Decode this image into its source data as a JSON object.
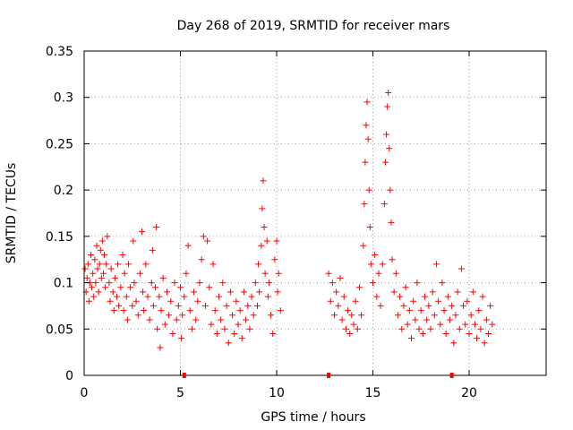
{
  "chart_data": {
    "type": "scatter",
    "title": "Day 268 of 2019, SRMTID for receiver mars",
    "xlabel": "GPS time / hours",
    "ylabel": "SRMTID / TECUs",
    "xlim": [
      0,
      24
    ],
    "ylim": [
      0,
      0.35
    ],
    "xticks": [
      0,
      5,
      10,
      15,
      20
    ],
    "xtick_labels": [
      "0",
      "5",
      "10",
      "15",
      "20"
    ],
    "yticks": [
      0,
      0.05,
      0.1,
      0.15,
      0.2,
      0.25,
      0.3,
      0.35
    ],
    "ytick_labels": [
      "0",
      "0.05",
      "0.1",
      "0.15",
      "0.2",
      "0.25",
      "0.3",
      "0.35"
    ],
    "grid": true,
    "marker": "+",
    "color": "#ff0000",
    "series": [
      {
        "name": "SRMTID",
        "points": [
          [
            0.05,
            0.115
          ],
          [
            0.1,
            0.09
          ],
          [
            0.15,
            0.105
          ],
          [
            0.2,
            0.12
          ],
          [
            0.25,
            0.08
          ],
          [
            0.3,
            0.1
          ],
          [
            0.35,
            0.13
          ],
          [
            0.4,
            0.095
          ],
          [
            0.45,
            0.11
          ],
          [
            0.5,
            0.085
          ],
          [
            0.55,
            0.125
          ],
          [
            0.6,
            0.1
          ],
          [
            0.65,
            0.14
          ],
          [
            0.7,
            0.115
          ],
          [
            0.75,
            0.09
          ],
          [
            0.8,
            0.12
          ],
          [
            0.85,
            0.135
          ],
          [
            0.9,
            0.105
          ],
          [
            0.95,
            0.145
          ],
          [
            1.0,
            0.11
          ],
          [
            1.05,
            0.13
          ],
          [
            1.1,
            0.095
          ],
          [
            1.15,
            0.12
          ],
          [
            1.2,
            0.15
          ],
          [
            1.3,
            0.1
          ],
          [
            1.35,
            0.08
          ],
          [
            1.4,
            0.115
          ],
          [
            1.5,
            0.09
          ],
          [
            1.55,
            0.07
          ],
          [
            1.6,
            0.105
          ],
          [
            1.7,
            0.085
          ],
          [
            1.75,
            0.12
          ],
          [
            1.8,
            0.075
          ],
          [
            1.9,
            0.095
          ],
          [
            2.0,
            0.13
          ],
          [
            2.05,
            0.07
          ],
          [
            2.1,
            0.11
          ],
          [
            2.2,
            0.085
          ],
          [
            2.25,
            0.06
          ],
          [
            2.3,
            0.12
          ],
          [
            2.4,
            0.095
          ],
          [
            2.5,
            0.075
          ],
          [
            2.55,
            0.145
          ],
          [
            2.6,
            0.1
          ],
          [
            2.7,
            0.08
          ],
          [
            2.8,
            0.065
          ],
          [
            2.9,
            0.11
          ],
          [
            3.0,
            0.155
          ],
          [
            3.05,
            0.09
          ],
          [
            3.1,
            0.07
          ],
          [
            3.2,
            0.12
          ],
          [
            3.3,
            0.085
          ],
          [
            3.4,
            0.06
          ],
          [
            3.5,
            0.1
          ],
          [
            3.55,
            0.135
          ],
          [
            3.6,
            0.075
          ],
          [
            3.7,
            0.095
          ],
          [
            3.75,
            0.16
          ],
          [
            3.8,
            0.05
          ],
          [
            3.9,
            0.085
          ],
          [
            3.95,
            0.03
          ],
          [
            4.0,
            0.07
          ],
          [
            4.1,
            0.105
          ],
          [
            4.2,
            0.055
          ],
          [
            4.3,
            0.09
          ],
          [
            4.4,
            0.065
          ],
          [
            4.5,
            0.08
          ],
          [
            4.6,
            0.045
          ],
          [
            4.7,
            0.1
          ],
          [
            4.8,
            0.06
          ],
          [
            4.9,
            0.075
          ],
          [
            5.0,
            0.095
          ],
          [
            5.05,
            0.04
          ],
          [
            5.1,
            0.065
          ],
          [
            5.2,
            0.085
          ],
          [
            5.3,
            0.11
          ],
          [
            5.4,
            0.14
          ],
          [
            5.5,
            0.07
          ],
          [
            5.6,
            0.05
          ],
          [
            5.7,
            0.09
          ],
          [
            5.8,
            0.06
          ],
          [
            5.9,
            0.08
          ],
          [
            6.0,
            0.1
          ],
          [
            6.1,
            0.125
          ],
          [
            6.2,
            0.15
          ],
          [
            6.3,
            0.075
          ],
          [
            6.4,
            0.145
          ],
          [
            6.5,
            0.095
          ],
          [
            6.6,
            0.055
          ],
          [
            6.7,
            0.12
          ],
          [
            6.8,
            0.07
          ],
          [
            6.9,
            0.045
          ],
          [
            7.0,
            0.085
          ],
          [
            7.1,
            0.06
          ],
          [
            7.2,
            0.1
          ],
          [
            7.3,
            0.05
          ],
          [
            7.4,
            0.075
          ],
          [
            7.5,
            0.035
          ],
          [
            7.6,
            0.09
          ],
          [
            7.7,
            0.065
          ],
          [
            7.8,
            0.045
          ],
          [
            7.9,
            0.08
          ],
          [
            8.0,
            0.055
          ],
          [
            8.1,
            0.07
          ],
          [
            8.2,
            0.04
          ],
          [
            8.3,
            0.09
          ],
          [
            8.4,
            0.06
          ],
          [
            8.5,
            0.075
          ],
          [
            8.6,
            0.05
          ],
          [
            8.7,
            0.085
          ],
          [
            8.8,
            0.065
          ],
          [
            8.9,
            0.1
          ],
          [
            9.0,
            0.075
          ],
          [
            9.05,
            0.12
          ],
          [
            9.1,
            0.09
          ],
          [
            9.2,
            0.14
          ],
          [
            9.25,
            0.18
          ],
          [
            9.3,
            0.21
          ],
          [
            9.35,
            0.16
          ],
          [
            9.4,
            0.11
          ],
          [
            9.5,
            0.145
          ],
          [
            9.55,
            0.085
          ],
          [
            9.6,
            0.1
          ],
          [
            9.7,
            0.065
          ],
          [
            9.8,
            0.045
          ],
          [
            9.9,
            0.125
          ],
          [
            10.0,
            0.145
          ],
          [
            10.05,
            0.09
          ],
          [
            10.1,
            0.11
          ],
          [
            10.2,
            0.07
          ],
          [
            12.7,
            0.11
          ],
          [
            12.8,
            0.08
          ],
          [
            12.9,
            0.1
          ],
          [
            13.0,
            0.065
          ],
          [
            13.1,
            0.09
          ],
          [
            13.2,
            0.075
          ],
          [
            13.3,
            0.105
          ],
          [
            13.4,
            0.06
          ],
          [
            13.5,
            0.085
          ],
          [
            13.6,
            0.05
          ],
          [
            13.7,
            0.07
          ],
          [
            13.8,
            0.045
          ],
          [
            13.9,
            0.065
          ],
          [
            14.0,
            0.055
          ],
          [
            14.1,
            0.08
          ],
          [
            14.2,
            0.05
          ],
          [
            14.3,
            0.095
          ],
          [
            14.4,
            0.065
          ],
          [
            14.5,
            0.14
          ],
          [
            14.55,
            0.185
          ],
          [
            14.6,
            0.23
          ],
          [
            14.65,
            0.27
          ],
          [
            14.7,
            0.295
          ],
          [
            14.75,
            0.255
          ],
          [
            14.8,
            0.2
          ],
          [
            14.85,
            0.16
          ],
          [
            14.9,
            0.12
          ],
          [
            15.0,
            0.1
          ],
          [
            15.1,
            0.13
          ],
          [
            15.2,
            0.085
          ],
          [
            15.3,
            0.11
          ],
          [
            15.4,
            0.075
          ],
          [
            15.5,
            0.12
          ],
          [
            15.6,
            0.185
          ],
          [
            15.65,
            0.23
          ],
          [
            15.7,
            0.26
          ],
          [
            15.75,
            0.29
          ],
          [
            15.8,
            0.305
          ],
          [
            15.85,
            0.245
          ],
          [
            15.9,
            0.2
          ],
          [
            15.95,
            0.165
          ],
          [
            16.0,
            0.125
          ],
          [
            16.1,
            0.09
          ],
          [
            16.2,
            0.11
          ],
          [
            16.3,
            0.065
          ],
          [
            16.4,
            0.085
          ],
          [
            16.5,
            0.05
          ],
          [
            16.6,
            0.075
          ],
          [
            16.7,
            0.095
          ],
          [
            16.8,
            0.055
          ],
          [
            16.9,
            0.07
          ],
          [
            17.0,
            0.04
          ],
          [
            17.1,
            0.08
          ],
          [
            17.2,
            0.06
          ],
          [
            17.3,
            0.1
          ],
          [
            17.4,
            0.05
          ],
          [
            17.5,
            0.07
          ],
          [
            17.6,
            0.045
          ],
          [
            17.7,
            0.085
          ],
          [
            17.8,
            0.06
          ],
          [
            17.9,
            0.075
          ],
          [
            18.0,
            0.05
          ],
          [
            18.1,
            0.09
          ],
          [
            18.2,
            0.065
          ],
          [
            18.3,
            0.12
          ],
          [
            18.4,
            0.08
          ],
          [
            18.5,
            0.055
          ],
          [
            18.6,
            0.1
          ],
          [
            18.7,
            0.07
          ],
          [
            18.8,
            0.045
          ],
          [
            18.9,
            0.085
          ],
          [
            19.0,
            0.06
          ],
          [
            19.1,
            0.075
          ],
          [
            19.2,
            0.035
          ],
          [
            19.3,
            0.065
          ],
          [
            19.4,
            0.09
          ],
          [
            19.5,
            0.05
          ],
          [
            19.6,
            0.115
          ],
          [
            19.7,
            0.075
          ],
          [
            19.8,
            0.055
          ],
          [
            19.9,
            0.08
          ],
          [
            20.0,
            0.045
          ],
          [
            20.1,
            0.065
          ],
          [
            20.2,
            0.09
          ],
          [
            20.3,
            0.055
          ],
          [
            20.4,
            0.04
          ],
          [
            20.5,
            0.07
          ],
          [
            20.6,
            0.05
          ],
          [
            20.7,
            0.085
          ],
          [
            20.8,
            0.035
          ],
          [
            20.9,
            0.06
          ],
          [
            21.0,
            0.045
          ],
          [
            21.1,
            0.075
          ],
          [
            21.2,
            0.055
          ]
        ]
      }
    ],
    "axis_markers_x": [
      5.2,
      12.7,
      19.1
    ]
  }
}
